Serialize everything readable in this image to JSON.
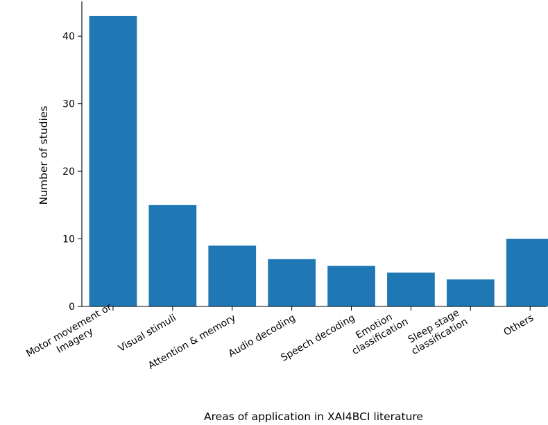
{
  "chart_data": {
    "type": "bar",
    "categories": [
      [
        "Motor movement or",
        "Imagery"
      ],
      [
        "Visual stimuli"
      ],
      [
        "Attention & memory"
      ],
      [
        "Audio decoding"
      ],
      [
        "Speech decoding"
      ],
      [
        "Emotion",
        "classification"
      ],
      [
        "Sleep stage",
        "classification"
      ],
      [
        "Others"
      ]
    ],
    "values": [
      43,
      15,
      9,
      7,
      6,
      5,
      4,
      10
    ],
    "xlabel": "Areas of application in XAI4BCI literature",
    "ylabel": "Number of studies",
    "ylim": [
      0,
      45.15
    ],
    "yticks": [
      0,
      10,
      20,
      30,
      40
    ],
    "color": "#1f77b4",
    "grid": false,
    "legend": "none"
  }
}
